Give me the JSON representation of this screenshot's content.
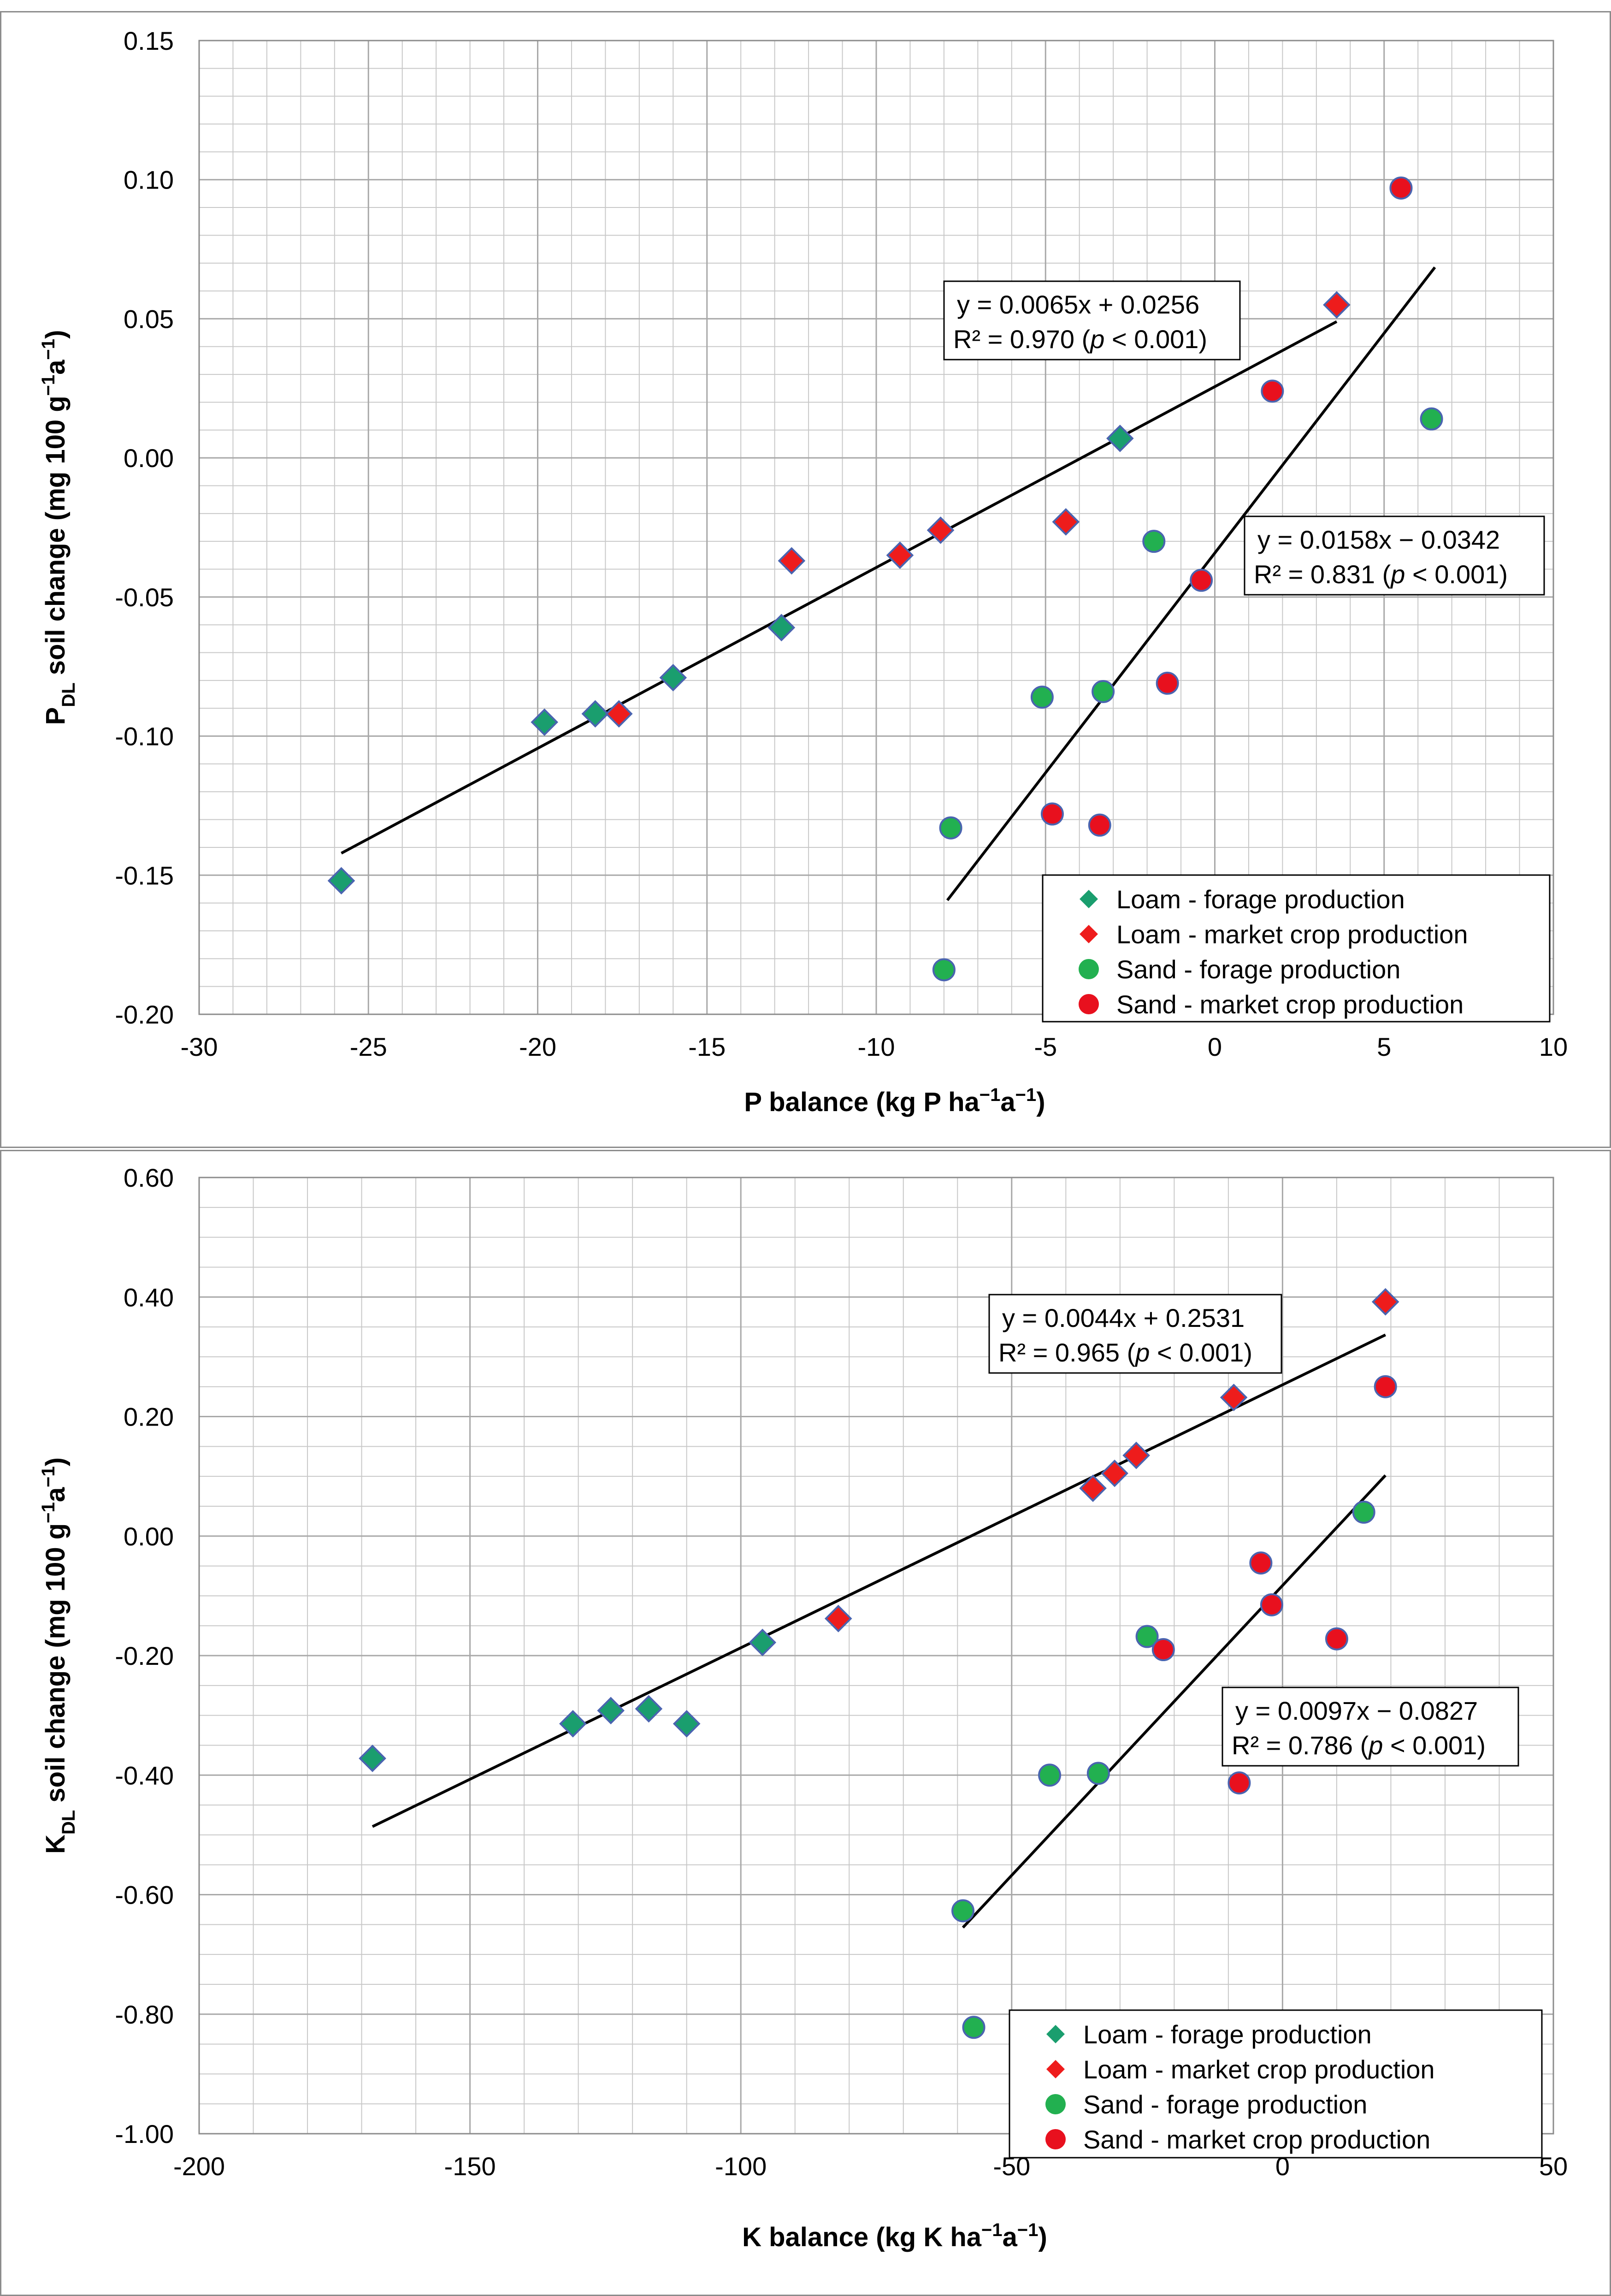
{
  "colors": {
    "loam_forage": "#1a9e6e",
    "loam_market": "#ee1c1c",
    "sand_forage": "#22b050",
    "sand_market": "#e8101e",
    "marker_edge": "#4a64b0",
    "grid": "#c8c8c8",
    "axis": "#000000"
  },
  "chart_data": [
    {
      "type": "scatter",
      "xlabel": {
        "main": "P balance (kg P ha",
        "sup1": "−1",
        "mid": "a",
        "sup2": "−1",
        "end": ")"
      },
      "ylabel": {
        "main": "P",
        "sub": "DL",
        "rest": " soil change (mg 100 g",
        "sup1": "−1",
        "mid": "a",
        "sup2": "−1",
        "end": ")"
      },
      "xlim": [
        -30,
        10
      ],
      "ylim": [
        -0.2,
        0.15
      ],
      "xticks": [
        -30,
        -25,
        -20,
        -15,
        -10,
        -5,
        0,
        5,
        10
      ],
      "xtick_labels": [
        "-30",
        "-25",
        "-20",
        "-15",
        "-10",
        "-5",
        "0",
        "5",
        "10"
      ],
      "yticks": [
        -0.2,
        -0.15,
        -0.1,
        -0.05,
        0.0,
        0.05,
        0.1,
        0.15
      ],
      "ytick_labels": [
        "-0.20",
        "-0.15",
        "-0.10",
        "-0.05",
        "0.00",
        "0.05",
        "0.10",
        "0.15"
      ],
      "x_minor_step": 1,
      "y_minor_step": 0.01,
      "legend": {
        "position": "bottom-right",
        "entries": [
          {
            "label": "Loam - forage production",
            "series": "loam_forage"
          },
          {
            "label": "Loam - market crop production",
            "series": "loam_market"
          },
          {
            "label": "Sand - forage production",
            "series": "sand_forage"
          },
          {
            "label": "Sand - market crop production",
            "series": "sand_market"
          }
        ]
      },
      "series": [
        {
          "name": "Loam - forage production",
          "key": "loam_forage",
          "marker": "diamond",
          "points": [
            [
              -25.8,
              -0.152
            ],
            [
              -19.8,
              -0.095
            ],
            [
              -18.3,
              -0.092
            ],
            [
              -16.0,
              -0.079
            ],
            [
              -12.8,
              -0.061
            ],
            [
              -2.8,
              0.007
            ]
          ]
        },
        {
          "name": "Loam - market crop production",
          "key": "loam_market",
          "marker": "diamond",
          "points": [
            [
              -17.6,
              -0.092
            ],
            [
              -12.5,
              -0.037
            ],
            [
              -9.3,
              -0.035
            ],
            [
              -8.1,
              -0.026
            ],
            [
              -4.4,
              -0.023
            ],
            [
              3.6,
              0.055
            ]
          ]
        },
        {
          "name": "Sand - forage production",
          "key": "sand_forage",
          "marker": "circle",
          "points": [
            [
              -8.0,
              -0.184
            ],
            [
              -7.8,
              -0.133
            ],
            [
              -5.1,
              -0.086
            ],
            [
              -3.3,
              -0.084
            ],
            [
              -1.8,
              -0.03
            ],
            [
              6.4,
              0.014
            ]
          ]
        },
        {
          "name": "Sand - market crop production",
          "key": "sand_market",
          "marker": "circle",
          "points": [
            [
              -4.8,
              -0.128
            ],
            [
              -3.4,
              -0.132
            ],
            [
              -1.4,
              -0.081
            ],
            [
              -0.4,
              -0.044
            ],
            [
              1.7,
              0.024
            ],
            [
              5.5,
              0.097
            ]
          ]
        }
      ],
      "trendlines": [
        {
          "name": "loam",
          "slope": 0.0065,
          "intercept": 0.0256,
          "x_range": [
            -25.8,
            3.6
          ],
          "label_line1": "y = 0.0065x + 0.0256",
          "label_line2_pre": "R² = 0.970 (",
          "label_p": "p",
          "label_line2_post": " < 0.001)"
        },
        {
          "name": "sand",
          "slope": 0.0158,
          "intercept": -0.0342,
          "x_range": [
            -7.9,
            6.5
          ],
          "label_line1": "y = 0.0158x − 0.0342",
          "label_line2_pre": "R² = 0.831 (",
          "label_p": "p",
          "label_line2_post": " < 0.001)"
        }
      ]
    },
    {
      "type": "scatter",
      "xlabel": {
        "main": "K balance (kg K ha",
        "sup1": "−1",
        "mid": "a",
        "sup2": "−1",
        "end": ")"
      },
      "ylabel": {
        "main": "K",
        "sub": "DL",
        "rest": " soil change (mg 100 g",
        "sup1": "−1",
        "mid": "a",
        "sup2": "−1",
        "end": ")"
      },
      "xlim": [
        -200,
        50
      ],
      "ylim": [
        -1.0,
        0.6
      ],
      "xticks": [
        -200,
        -150,
        -100,
        -50,
        0,
        50
      ],
      "xtick_labels": [
        "-200",
        "-150",
        "-100",
        "-50",
        "0",
        "50"
      ],
      "yticks": [
        -1.0,
        -0.8,
        -0.6,
        -0.4,
        -0.2,
        0.0,
        0.2,
        0.4,
        0.6
      ],
      "ytick_labels": [
        "-1.00",
        "-0.80",
        "-0.60",
        "-0.40",
        "-0.20",
        "0.00",
        "0.20",
        "0.40",
        "0.60"
      ],
      "x_minor_step": 10,
      "y_minor_step": 0.05,
      "legend": {
        "position": "bottom-right",
        "entries": [
          {
            "label": "Loam - forage production",
            "series": "loam_forage"
          },
          {
            "label": "Loam - market crop production",
            "series": "loam_market"
          },
          {
            "label": "Sand - forage production",
            "series": "sand_forage"
          },
          {
            "label": "Sand - market crop production",
            "series": "sand_market"
          }
        ]
      },
      "series": [
        {
          "name": "Loam - forage production",
          "key": "loam_forage",
          "marker": "diamond",
          "points": [
            [
              -168,
              -0.372
            ],
            [
              -131,
              -0.314
            ],
            [
              -124,
              -0.292
            ],
            [
              -117,
              -0.289
            ],
            [
              -110,
              -0.314
            ],
            [
              -96,
              -0.178
            ]
          ]
        },
        {
          "name": "Loam - market crop production",
          "key": "loam_market",
          "marker": "diamond",
          "points": [
            [
              -82,
              -0.138
            ],
            [
              -35,
              0.08
            ],
            [
              -31,
              0.105
            ],
            [
              -27,
              0.135
            ],
            [
              -9,
              0.232
            ],
            [
              19,
              0.392
            ]
          ]
        },
        {
          "name": "Sand - forage production",
          "key": "sand_forage",
          "marker": "circle",
          "points": [
            [
              -59,
              -0.627
            ],
            [
              -57,
              -0.822
            ],
            [
              -43,
              -0.4
            ],
            [
              -34,
              -0.397
            ],
            [
              -25,
              -0.168
            ],
            [
              15,
              0.04
            ]
          ]
        },
        {
          "name": "Sand - market crop production",
          "key": "sand_market",
          "marker": "circle",
          "points": [
            [
              -22,
              -0.19
            ],
            [
              -8,
              -0.413
            ],
            [
              -4,
              -0.045
            ],
            [
              -2,
              -0.115
            ],
            [
              10,
              -0.172
            ],
            [
              19,
              0.25
            ]
          ]
        }
      ],
      "trendlines": [
        {
          "name": "loam",
          "slope": 0.0044,
          "intercept": 0.2531,
          "x_range": [
            -168,
            19
          ],
          "label_line1": "y = 0.0044x + 0.2531",
          "label_line2_pre": "R² = 0.965 (",
          "label_p": "p",
          "label_line2_post": " < 0.001)"
        },
        {
          "name": "sand",
          "slope": 0.0097,
          "intercept": -0.0827,
          "x_range": [
            -59,
            19
          ],
          "label_line1": "y = 0.0097x − 0.0827",
          "label_line2_pre": "R² = 0.786 (",
          "label_p": "p",
          "label_line2_post": " < 0.001)"
        }
      ]
    }
  ]
}
